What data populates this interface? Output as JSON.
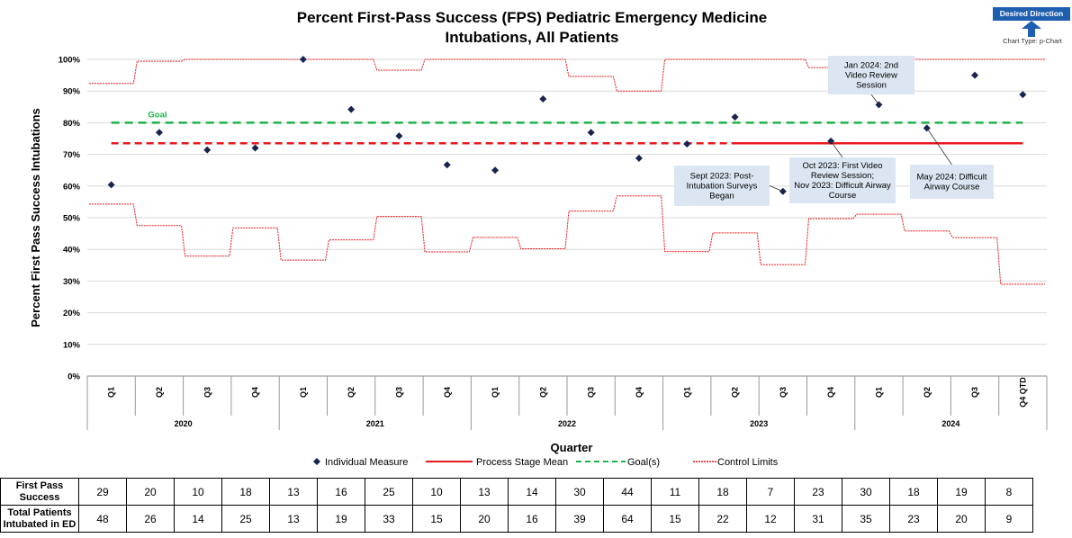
{
  "title_line1": "Percent First-Pass Success (FPS) Pediatric Emergency Medicine",
  "title_line2": "Intubations, All Patients",
  "desired_direction": {
    "label": "Desired Direction",
    "arrow": "up-arrow-icon",
    "chart_type": "Chart Type: p-Chart"
  },
  "colors": {
    "point": "#17244f",
    "mean": "#e8191f",
    "goal": "#1db34a",
    "control": "#e8191f",
    "annotation_bg": "#dce6f2",
    "grid": "#d9d9d9"
  },
  "chart_data": {
    "type": "scatter",
    "chart_kind": "p-chart",
    "ylabel": "Percent First Pass Success Intubations",
    "xlabel": "Quarter",
    "ylim": [
      0,
      100
    ],
    "y_ticks": [
      "0%",
      "10%",
      "20%",
      "30%",
      "40%",
      "50%",
      "60%",
      "70%",
      "80%",
      "90%",
      "100%"
    ],
    "grid": true,
    "quarters": [
      "Q1",
      "Q2",
      "Q3",
      "Q4",
      "Q1",
      "Q2",
      "Q3",
      "Q4",
      "Q1",
      "Q2",
      "Q3",
      "Q4",
      "Q1",
      "Q2",
      "Q3",
      "Q4",
      "Q1",
      "Q2",
      "Q3",
      "Q4 QTD"
    ],
    "years": [
      {
        "label": "2020",
        "quarter_count": 4
      },
      {
        "label": "2021",
        "quarter_count": 4
      },
      {
        "label": "2022",
        "quarter_count": 4
      },
      {
        "label": "2023",
        "quarter_count": 4
      },
      {
        "label": "2024",
        "quarter_count": 4
      }
    ],
    "series": [
      {
        "name": "Individual Measure",
        "values": [
          60.4,
          76.9,
          71.4,
          72.0,
          100.0,
          84.2,
          75.8,
          66.7,
          65.0,
          87.5,
          76.9,
          68.8,
          73.3,
          81.8,
          58.3,
          74.2,
          85.7,
          78.3,
          95.0,
          88.9
        ]
      },
      {
        "name": "Process Stage Mean",
        "stages": [
          {
            "start_index": 0,
            "end_index": 13,
            "value": 73.5,
            "style": "dashed"
          },
          {
            "start_index": 13,
            "end_index": 19,
            "value": 73.5,
            "style": "solid"
          }
        ]
      },
      {
        "name": "Goal(s)",
        "value": 80,
        "label": "Goal"
      },
      {
        "name": "Control Limits",
        "upper": [
          92.4,
          99.4,
          100,
          100,
          100,
          100,
          96.6,
          100,
          100,
          100,
          94.6,
          90.0,
          100,
          100,
          100,
          97.4,
          100,
          100,
          100,
          100
        ],
        "lower": [
          54.3,
          47.5,
          37.9,
          46.8,
          36.6,
          43.0,
          50.4,
          39.2,
          43.8,
          40.2,
          52.1,
          56.9,
          39.3,
          45.2,
          35.2,
          49.7,
          51.1,
          45.8,
          43.7,
          29.0
        ]
      }
    ],
    "legend": [
      {
        "label": "Individual Measure",
        "kind": "diamond"
      },
      {
        "label": "Process Stage Mean",
        "kind": "solid"
      },
      {
        "label": "Goal(s)",
        "kind": "dashed"
      },
      {
        "label": "Control Limits",
        "kind": "dotted"
      }
    ],
    "legend_position": "bottom",
    "annotations": [
      {
        "lines": [
          "Jan 2024: 2nd",
          "Video Review",
          "Session"
        ],
        "point_index": 16
      },
      {
        "lines": [
          "Sept 2023: Post-",
          "Intubation Surveys",
          "Began"
        ],
        "point_index": 14
      },
      {
        "lines": [
          "Oct 2023: First Video",
          "Review Session;",
          "Nov 2023: Difficult Airway",
          "Course"
        ],
        "point_index": 15
      },
      {
        "lines": [
          "May 2024: Difficult",
          "Airway Course"
        ],
        "point_index": 17
      }
    ]
  },
  "table": {
    "rows": [
      {
        "label": "First Pass Success",
        "values": [
          "29",
          "20",
          "10",
          "18",
          "13",
          "16",
          "25",
          "10",
          "13",
          "14",
          "30",
          "44",
          "11",
          "18",
          "7",
          "23",
          "30",
          "18",
          "19",
          "8"
        ]
      },
      {
        "label": "Total Patients Intubated in ED",
        "values": [
          "48",
          "26",
          "14",
          "25",
          "13",
          "19",
          "33",
          "15",
          "20",
          "16",
          "39",
          "64",
          "15",
          "22",
          "12",
          "31",
          "35",
          "23",
          "20",
          "9"
        ]
      }
    ]
  }
}
